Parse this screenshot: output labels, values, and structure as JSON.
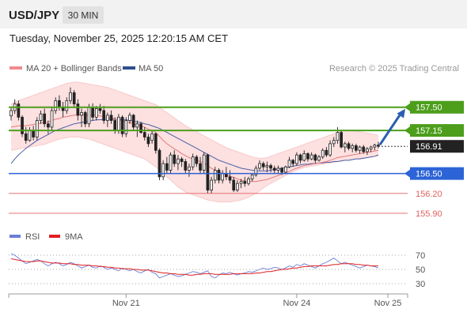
{
  "header": {
    "symbol": "USD/JPY",
    "timeframe": "30 MIN",
    "timestamp": "Tuesday, November 25, 2025 12:20:15 AM CET"
  },
  "legend": {
    "items": [
      {
        "label": "MA 20 + Bollinger Bands",
        "color": "#f28b8b"
      },
      {
        "label": "MA 50",
        "color": "#2e4f8f"
      }
    ],
    "credit": "Research © 2025 Trading Central"
  },
  "colors": {
    "up_candle": "#ffffff",
    "down_candle": "#222222",
    "bollinger_fill": "#fde0e0",
    "ma20": "#e47a7a",
    "ma50": "#4a5fa5",
    "resistance": "#4c9e1b",
    "pivot": "#2c63d6",
    "support": "#e06060",
    "arrow": "#2a5fb0",
    "current_tag": "#222222"
  },
  "levels": [
    {
      "label": "157.50",
      "value": 157.5,
      "kind": "resistance"
    },
    {
      "label": "157.15",
      "value": 157.15,
      "kind": "resistance"
    },
    {
      "label": "156.91",
      "value": 156.91,
      "kind": "current"
    },
    {
      "label": "156.50",
      "value": 156.5,
      "kind": "pivot"
    },
    {
      "label": "156.20",
      "value": 156.2,
      "kind": "support"
    },
    {
      "label": "155.90",
      "value": 155.9,
      "kind": "support"
    }
  ],
  "chart_data": {
    "type": "candlestick",
    "ylim": [
      155.78,
      157.95
    ],
    "x_ticks": [
      {
        "label": "Nov 21",
        "index": 31
      },
      {
        "label": "Nov 24",
        "index": 77
      },
      {
        "label": "Nov 25",
        "index": 113
      }
    ],
    "ohlc": [
      [
        157.37,
        157.5,
        157.3,
        157.45
      ],
      [
        157.45,
        157.62,
        157.4,
        157.55
      ],
      [
        157.55,
        157.6,
        157.3,
        157.35
      ],
      [
        157.35,
        157.38,
        157.05,
        157.1
      ],
      [
        157.1,
        157.2,
        156.95,
        157.0
      ],
      [
        157.0,
        157.2,
        156.98,
        157.15
      ],
      [
        157.15,
        157.22,
        157.0,
        157.05
      ],
      [
        157.05,
        157.35,
        157.0,
        157.3
      ],
      [
        157.3,
        157.45,
        157.25,
        157.4
      ],
      [
        157.4,
        157.48,
        157.2,
        157.25
      ],
      [
        157.25,
        157.3,
        157.1,
        157.2
      ],
      [
        157.2,
        157.5,
        157.15,
        157.45
      ],
      [
        157.45,
        157.65,
        157.4,
        157.6
      ],
      [
        157.6,
        157.68,
        157.45,
        157.5
      ],
      [
        157.5,
        157.58,
        157.35,
        157.45
      ],
      [
        157.45,
        157.65,
        157.4,
        157.6
      ],
      [
        157.6,
        157.8,
        157.55,
        157.72
      ],
      [
        157.72,
        157.76,
        157.5,
        157.55
      ],
      [
        157.55,
        157.62,
        157.3,
        157.38
      ],
      [
        157.38,
        157.48,
        157.2,
        157.42
      ],
      [
        157.42,
        157.45,
        157.2,
        157.25
      ],
      [
        157.25,
        157.55,
        157.2,
        157.5
      ],
      [
        157.5,
        157.56,
        157.3,
        157.35
      ],
      [
        157.35,
        157.52,
        157.3,
        157.48
      ],
      [
        157.48,
        157.55,
        157.4,
        157.45
      ],
      [
        157.45,
        157.52,
        157.25,
        157.3
      ],
      [
        157.3,
        157.42,
        157.2,
        157.38
      ],
      [
        157.38,
        157.45,
        157.25,
        157.3
      ],
      [
        157.3,
        157.35,
        157.1,
        157.15
      ],
      [
        157.15,
        157.4,
        157.1,
        157.35
      ],
      [
        157.35,
        157.38,
        157.05,
        157.1
      ],
      [
        157.1,
        157.35,
        157.05,
        157.3
      ],
      [
        157.3,
        157.42,
        157.25,
        157.38
      ],
      [
        157.38,
        157.4,
        157.15,
        157.2
      ],
      [
        157.2,
        157.3,
        157.05,
        157.25
      ],
      [
        157.25,
        157.28,
        157.1,
        157.12
      ],
      [
        157.12,
        157.2,
        157.0,
        157.05
      ],
      [
        157.05,
        157.1,
        156.9,
        156.95
      ],
      [
        157.0,
        157.15,
        156.95,
        157.1
      ],
      [
        157.1,
        157.12,
        156.8,
        156.85
      ],
      [
        156.85,
        156.88,
        156.4,
        156.45
      ],
      [
        156.45,
        156.7,
        156.4,
        156.65
      ],
      [
        156.65,
        156.75,
        156.5,
        156.55
      ],
      [
        156.55,
        156.82,
        156.5,
        156.78
      ],
      [
        156.78,
        156.85,
        156.6,
        156.65
      ],
      [
        156.65,
        156.78,
        156.55,
        156.72
      ],
      [
        156.72,
        156.75,
        156.6,
        156.68
      ],
      [
        156.68,
        156.72,
        156.5,
        156.55
      ],
      [
        156.55,
        156.65,
        156.45,
        156.6
      ],
      [
        156.6,
        156.8,
        156.55,
        156.75
      ],
      [
        156.75,
        156.78,
        156.6,
        156.65
      ],
      [
        156.65,
        156.75,
        156.5,
        156.55
      ],
      [
        156.55,
        156.82,
        156.5,
        156.78
      ],
      [
        156.78,
        156.8,
        156.2,
        156.25
      ],
      [
        156.25,
        156.45,
        156.2,
        156.4
      ],
      [
        156.4,
        156.6,
        156.35,
        156.55
      ],
      [
        156.55,
        156.58,
        156.35,
        156.4
      ],
      [
        156.4,
        156.55,
        156.35,
        156.5
      ],
      [
        156.5,
        156.6,
        156.4,
        156.45
      ],
      [
        156.45,
        156.55,
        156.35,
        156.4
      ],
      [
        156.4,
        156.45,
        156.22,
        156.25
      ],
      [
        156.25,
        156.4,
        156.22,
        156.35
      ],
      [
        156.35,
        156.42,
        156.28,
        156.38
      ],
      [
        156.38,
        156.45,
        156.3,
        156.35
      ],
      [
        156.35,
        156.45,
        156.32,
        156.42
      ],
      [
        156.42,
        156.5,
        156.38,
        156.48
      ],
      [
        156.48,
        156.62,
        156.45,
        156.58
      ],
      [
        156.58,
        156.7,
        156.55,
        156.65
      ],
      [
        156.65,
        156.68,
        156.55,
        156.6
      ],
      [
        156.6,
        156.68,
        156.52,
        156.62
      ],
      [
        156.62,
        156.65,
        156.52,
        156.58
      ],
      [
        156.58,
        156.62,
        156.5,
        156.55
      ],
      [
        156.55,
        156.62,
        156.5,
        156.58
      ],
      [
        156.58,
        156.6,
        156.48,
        156.52
      ],
      [
        156.52,
        156.62,
        156.5,
        156.6
      ],
      [
        156.6,
        156.75,
        156.58,
        156.7
      ],
      [
        156.7,
        156.72,
        156.6,
        156.65
      ],
      [
        156.65,
        156.82,
        156.62,
        156.78
      ],
      [
        156.78,
        156.8,
        156.65,
        156.7
      ],
      [
        156.7,
        156.85,
        156.68,
        156.8
      ],
      [
        156.8,
        156.82,
        156.68,
        156.72
      ],
      [
        156.72,
        156.82,
        156.7,
        156.78
      ],
      [
        156.78,
        156.8,
        156.65,
        156.7
      ],
      [
        156.7,
        156.78,
        156.68,
        156.75
      ],
      [
        156.75,
        156.88,
        156.72,
        156.85
      ],
      [
        156.85,
        156.9,
        156.75,
        156.78
      ],
      [
        156.78,
        157.0,
        156.75,
        156.95
      ],
      [
        156.95,
        157.05,
        156.9,
        157.0
      ],
      [
        157.0,
        157.2,
        156.95,
        157.12
      ],
      [
        157.12,
        157.15,
        156.88,
        156.9
      ],
      [
        156.9,
        156.98,
        156.82,
        156.95
      ],
      [
        156.95,
        156.98,
        156.85,
        156.88
      ],
      [
        156.88,
        156.95,
        156.82,
        156.92
      ],
      [
        156.92,
        156.95,
        156.82,
        156.85
      ],
      [
        156.85,
        156.92,
        156.8,
        156.9
      ],
      [
        156.9,
        156.93,
        156.8,
        156.83
      ],
      [
        156.83,
        156.9,
        156.78,
        156.87
      ],
      [
        156.87,
        156.92,
        156.82,
        156.9
      ],
      [
        156.9,
        156.95,
        156.85,
        156.93
      ],
      [
        156.93,
        156.98,
        156.88,
        156.91
      ]
    ],
    "ma20": [
      157.2,
      157.21,
      157.22,
      157.22,
      157.22,
      157.23,
      157.24,
      157.25,
      157.26,
      157.27,
      157.28,
      157.3,
      157.32,
      157.33,
      157.35,
      157.36,
      157.37,
      157.38,
      157.38,
      157.38,
      157.38,
      157.38,
      157.38,
      157.38,
      157.37,
      157.36,
      157.35,
      157.34,
      157.32,
      157.31,
      157.3,
      157.28,
      157.27,
      157.25,
      157.24,
      157.22,
      157.2,
      157.17,
      157.15,
      157.12,
      157.06,
      157.0,
      156.95,
      156.91,
      156.87,
      156.84,
      156.8,
      156.77,
      156.74,
      156.72,
      156.7,
      156.68,
      156.66,
      156.62,
      156.58,
      156.55,
      156.52,
      156.5,
      156.48,
      156.46,
      156.44,
      156.42,
      156.4,
      156.39,
      156.38,
      156.38,
      156.38,
      156.39,
      156.4,
      156.41,
      156.43,
      156.45,
      156.47,
      156.49,
      156.51,
      156.53,
      156.56,
      156.58,
      156.6,
      156.62,
      156.63,
      156.64,
      156.65,
      156.66,
      156.67,
      156.68,
      156.7,
      156.72,
      156.74,
      156.75,
      156.76,
      156.77,
      156.78,
      156.79,
      156.8,
      156.81,
      156.82,
      156.83,
      156.84,
      156.85
    ],
    "ma50": [
      156.65,
      156.72,
      156.78,
      156.83,
      156.88,
      156.92,
      156.96,
      157.0,
      157.03,
      157.06,
      157.09,
      157.12,
      157.15,
      157.17,
      157.19,
      157.21,
      157.23,
      157.25,
      157.26,
      157.27,
      157.28,
      157.29,
      157.3,
      157.31,
      157.31,
      157.32,
      157.32,
      157.32,
      157.32,
      157.32,
      157.31,
      157.31,
      157.3,
      157.29,
      157.28,
      157.27,
      157.25,
      157.24,
      157.22,
      157.2,
      157.18,
      157.15,
      157.12,
      157.09,
      157.06,
      157.03,
      157.0,
      156.97,
      156.94,
      156.91,
      156.88,
      156.85,
      156.82,
      156.79,
      156.76,
      156.73,
      156.7,
      156.68,
      156.66,
      156.64,
      156.62,
      156.6,
      156.58,
      156.57,
      156.56,
      156.55,
      156.54,
      156.54,
      156.54,
      156.54,
      156.55,
      156.56,
      156.57,
      156.58,
      156.59,
      156.6,
      156.61,
      156.62,
      156.63,
      156.64,
      156.64,
      156.65,
      156.65,
      156.66,
      156.66,
      156.67,
      156.67,
      156.68,
      156.68,
      156.69,
      156.7,
      156.7,
      156.71,
      156.72,
      156.72,
      156.73,
      156.74,
      156.75,
      156.76,
      156.78
    ],
    "bollinger_upper": [
      157.55,
      157.58,
      157.6,
      157.62,
      157.64,
      157.66,
      157.68,
      157.7,
      157.72,
      157.74,
      157.76,
      157.78,
      157.8,
      157.82,
      157.84,
      157.86,
      157.87,
      157.88,
      157.88,
      157.87,
      157.86,
      157.85,
      157.84,
      157.83,
      157.82,
      157.81,
      157.8,
      157.78,
      157.76,
      157.74,
      157.72,
      157.7,
      157.68,
      157.66,
      157.64,
      157.62,
      157.6,
      157.58,
      157.56,
      157.54,
      157.5,
      157.46,
      157.42,
      157.38,
      157.34,
      157.3,
      157.26,
      157.22,
      157.19,
      157.16,
      157.13,
      157.1,
      157.07,
      157.04,
      157.01,
      156.98,
      156.95,
      156.92,
      156.89,
      156.87,
      156.85,
      156.83,
      156.81,
      156.79,
      156.77,
      156.75,
      156.74,
      156.73,
      156.73,
      156.74,
      156.76,
      156.78,
      156.8,
      156.82,
      156.84,
      156.86,
      156.88,
      156.9,
      156.92,
      156.94,
      156.96,
      156.98,
      157.0,
      157.02,
      157.04,
      157.06,
      157.08,
      157.1,
      157.12,
      157.14,
      157.15,
      157.15,
      157.15,
      157.14,
      157.13,
      157.12,
      157.11,
      157.1,
      157.09,
      157.08
    ],
    "bollinger_lower": [
      156.85,
      156.86,
      156.87,
      156.88,
      156.89,
      156.9,
      156.91,
      156.92,
      156.93,
      156.94,
      156.96,
      156.98,
      157.0,
      157.02,
      157.03,
      157.04,
      157.05,
      157.05,
      157.05,
      157.04,
      157.03,
      157.02,
      157.0,
      156.98,
      156.96,
      156.94,
      156.92,
      156.9,
      156.88,
      156.86,
      156.84,
      156.82,
      156.8,
      156.78,
      156.76,
      156.74,
      156.72,
      156.68,
      156.64,
      156.6,
      156.55,
      156.5,
      156.45,
      156.4,
      156.35,
      156.3,
      156.26,
      156.22,
      156.2,
      156.18,
      156.16,
      156.14,
      156.12,
      156.1,
      156.09,
      156.08,
      156.07,
      156.07,
      156.07,
      156.07,
      156.08,
      156.09,
      156.1,
      156.12,
      156.14,
      156.17,
      156.2,
      156.24,
      156.28,
      156.32,
      156.35,
      156.38,
      156.41,
      156.44,
      156.47,
      156.5,
      156.53,
      156.55,
      156.57,
      156.59,
      156.6,
      156.61,
      156.62,
      156.63,
      156.64,
      156.65,
      156.66,
      156.67,
      156.68,
      156.69,
      156.7,
      156.7,
      156.71,
      156.72,
      156.73,
      156.74,
      156.74,
      156.75,
      156.76,
      156.77
    ]
  },
  "rsi": {
    "legend": [
      {
        "label": "RSI",
        "color": "#6b7fd6"
      },
      {
        "label": "9MA",
        "color": "#e02020"
      }
    ],
    "ticks": [
      {
        "label": "70",
        "value": 70
      },
      {
        "label": "50",
        "value": 50
      },
      {
        "label": "30",
        "value": 30
      }
    ],
    "ylim": [
      20,
      80
    ],
    "values": [
      72,
      70,
      66,
      62,
      58,
      60,
      62,
      64,
      62,
      58,
      55,
      58,
      60,
      58,
      55,
      57,
      60,
      58,
      55,
      52,
      54,
      56,
      53,
      52,
      55,
      53,
      50,
      52,
      50,
      48,
      52,
      50,
      48,
      50,
      47,
      45,
      48,
      50,
      46,
      44,
      38,
      40,
      42,
      44,
      42,
      40,
      41,
      43,
      45,
      47,
      46,
      44,
      46,
      48,
      40,
      38,
      42,
      45,
      44,
      46,
      44,
      42,
      44,
      45,
      47,
      46,
      48,
      50,
      52,
      50,
      51,
      53,
      52,
      50,
      52,
      55,
      53,
      57,
      55,
      58,
      56,
      54,
      52,
      55,
      58,
      60,
      63,
      66,
      62,
      58,
      60,
      58,
      56,
      54,
      52,
      54,
      56,
      55,
      54,
      52
    ],
    "ma9": [
      65,
      64,
      63,
      62,
      61,
      61,
      61,
      62,
      62,
      61,
      60,
      59,
      59,
      59,
      58,
      58,
      58,
      57,
      57,
      56,
      56,
      56,
      55,
      55,
      54,
      54,
      53,
      53,
      52,
      52,
      51,
      51,
      51,
      50,
      50,
      49,
      49,
      49,
      48,
      47,
      46,
      45,
      45,
      44,
      44,
      43,
      43,
      43,
      42,
      42,
      43,
      43,
      44,
      44,
      44,
      43,
      43,
      43,
      43,
      43,
      44,
      44,
      44,
      44,
      44,
      44,
      45,
      45,
      46,
      47,
      47,
      48,
      49,
      50,
      50,
      51,
      52,
      52,
      53,
      54,
      54,
      55,
      55,
      55,
      55,
      55,
      56,
      57,
      57,
      58,
      58,
      58,
      58,
      57,
      57,
      56,
      56,
      55,
      55,
      55
    ]
  }
}
